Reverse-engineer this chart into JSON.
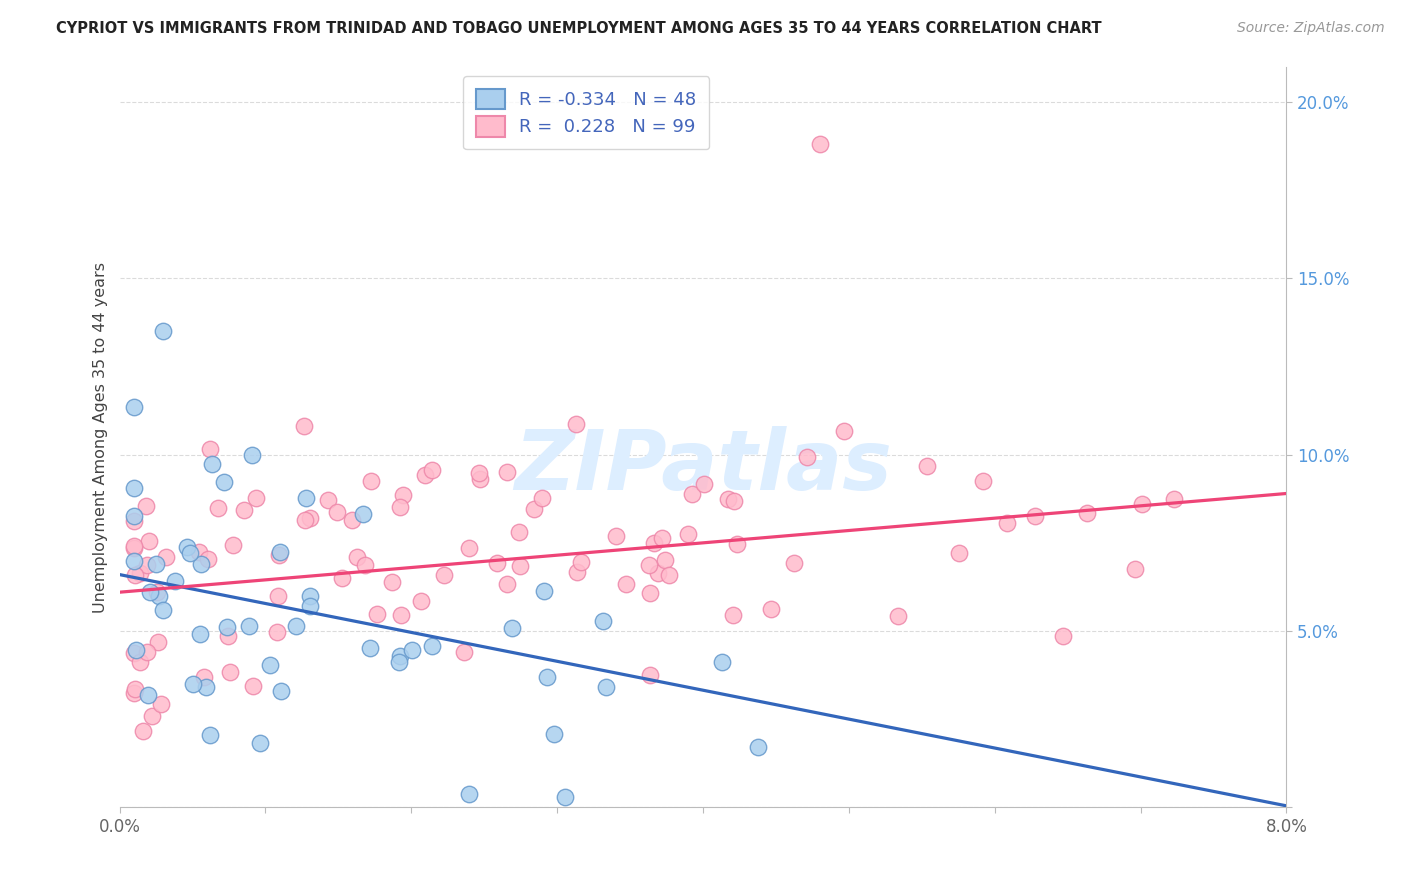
{
  "title": "CYPRIOT VS IMMIGRANTS FROM TRINIDAD AND TOBAGO UNEMPLOYMENT AMONG AGES 35 TO 44 YEARS CORRELATION CHART",
  "source": "Source: ZipAtlas.com",
  "ylabel": "Unemployment Among Ages 35 to 44 years",
  "xmin": 0.0,
  "xmax": 0.08,
  "ymin": 0.0,
  "ymax": 0.21,
  "ytick_vals": [
    0.0,
    0.05,
    0.1,
    0.15,
    0.2
  ],
  "ytick_labels": [
    "",
    "5.0%",
    "10.0%",
    "15.0%",
    "20.0%"
  ],
  "cypriot_r": -0.334,
  "cypriot_n": 48,
  "trinidad_r": 0.228,
  "trinidad_n": 99,
  "cypriot_fill_color": "#aacfee",
  "cypriot_edge_color": "#6699cc",
  "trinidad_fill_color": "#ffbbcc",
  "trinidad_edge_color": "#ee88aa",
  "cypriot_line_color": "#3366bb",
  "trinidad_line_color": "#ee4477",
  "watermark_color": "#ddeeff",
  "grid_color": "#cccccc",
  "title_color": "#222222",
  "source_color": "#999999",
  "ylabel_color": "#444444",
  "ytick_color": "#5599dd",
  "xtick_color": "#666666",
  "legend_r_color": "#4466bb",
  "legend_n_color": "#4466bb"
}
